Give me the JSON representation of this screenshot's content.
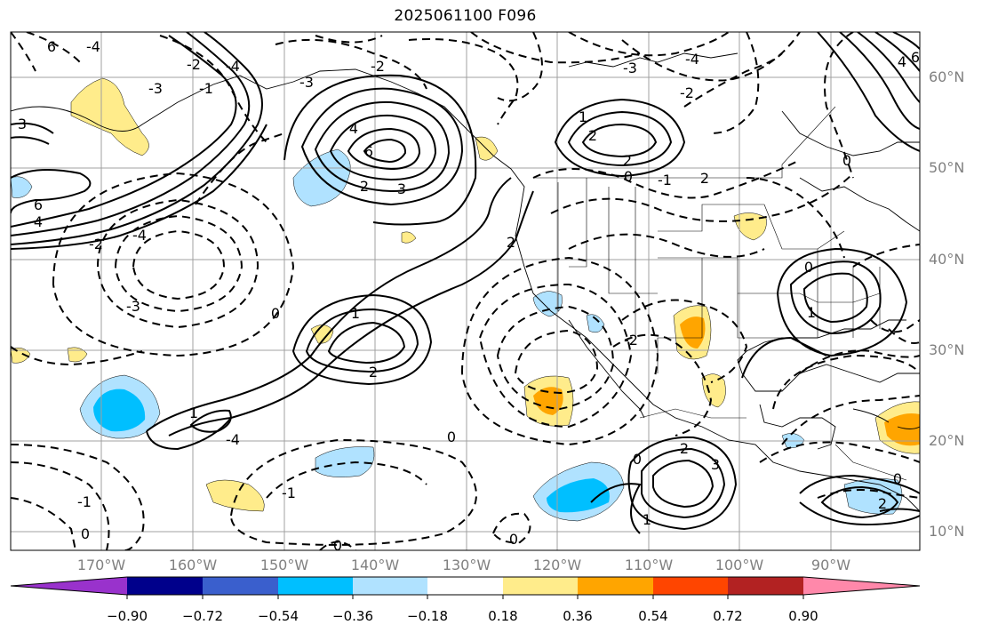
{
  "title": "2025061100 F096",
  "lat_labels": [
    "60°N",
    "50°N",
    "40°N",
    "30°N",
    "20°N",
    "10°N"
  ],
  "lon_labels": [
    "170°W",
    "160°W",
    "150°W",
    "140°W",
    "130°W",
    "120°W",
    "110°W",
    "100°W",
    "90°W"
  ],
  "contour_labels": [
    "-4",
    "-3",
    "-2",
    "-1",
    "0",
    "1",
    "2",
    "3",
    "4",
    "6"
  ],
  "colorbar": {
    "ticks": [
      "−0.90",
      "−0.72",
      "−0.54",
      "−0.36",
      "−0.18",
      "0.18",
      "0.36",
      "0.54",
      "0.72",
      "0.90"
    ],
    "colors": [
      "#9932cc",
      "#00008b",
      "#3a5fcd",
      "#00bfff",
      "#b0e2ff",
      "#ffffff",
      "#ffec8b",
      "#ffa500",
      "#ff4500",
      "#b22222",
      "#ff88aa"
    ]
  }
}
